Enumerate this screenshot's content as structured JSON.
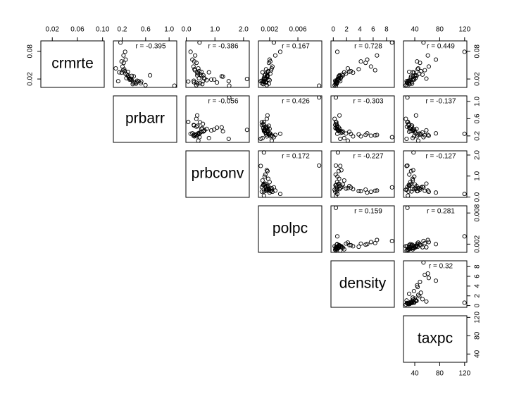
{
  "chart_data": {
    "type": "scatter-matrix",
    "variables": [
      {
        "name": "crmrte",
        "lim": [
          0.0018,
          0.1026
        ],
        "xticks": [
          0.02,
          0.06,
          {
            "value": 0.1,
            "label": "0.10"
          }
        ],
        "yticks": [
          0.02,
          0.08
        ],
        "values": [
          0.0356,
          0.0153,
          0.013,
          0.0268,
          0.0106,
          0.0146,
          0.0098,
          0.0218,
          0.055,
          0.0989,
          0.0338,
          0.0175,
          0.0066,
          0.0279,
          0.0411,
          0.0187,
          0.079,
          0.0124,
          0.0316,
          0.047,
          0.0055,
          0.02,
          0.0258,
          0.015,
          0.039,
          0.062,
          0.0296,
          0.0225,
          0.0345,
          0.0121,
          0.071,
          0.0189,
          0.043,
          0.0163,
          0.028,
          0.009,
          0.0252,
          0.037,
          0.0208,
          0.058
        ]
      },
      {
        "name": "prbarr",
        "lim": [
          0.05,
          1.13
        ],
        "xticks": [
          0.2,
          0.6,
          {
            "value": 1,
            "label": "1.0"
          }
        ],
        "yticks": [
          0.2,
          0.6,
          {
            "value": 1,
            "label": "1.0"
          }
        ],
        "values": [
          0.298,
          0.132,
          0.444,
          0.364,
          0.518,
          0.525,
          0.436,
          0.271,
          0.226,
          0.171,
          0.19,
          0.365,
          0.597,
          0.302,
          0.235,
          0.327,
          0.25,
          0.391,
          0.255,
          0.205,
          1.091,
          0.34,
          0.398,
          0.48,
          0.215,
          0.26,
          0.28,
          0.315,
          0.15,
          0.415,
          0.223,
          0.35,
          0.09,
          0.455,
          0.675,
          0.38,
          0.306,
          0.245,
          0.33,
          0.19
        ]
      },
      {
        "name": "prbconv",
        "lim": [
          -0.014,
          2.2
        ],
        "xticks": [
          {
            "value": 0,
            "label": "0.0"
          },
          {
            "value": 1,
            "label": "1.0"
          },
          {
            "value": 2,
            "label": "2.0"
          }
        ],
        "yticks": [
          {
            "value": 0,
            "label": "0.0"
          },
          {
            "value": 1,
            "label": "1.0"
          },
          {
            "value": 2,
            "label": "2.0"
          }
        ],
        "values": [
          0.527,
          1.481,
          0.267,
          0.525,
          0.476,
          0.068,
          0.394,
          0.443,
          0.355,
          0.462,
          0.378,
          0.714,
          0.35,
          0.597,
          0.286,
          0.872,
          0.15,
          1.071,
          0.404,
          0.25,
          1.5,
          2.121,
          1.236,
          0.58,
          0.3,
          0.213,
          0.492,
          0.612,
          0.79,
          0.355,
          0.31,
          0.975,
          0.42,
          0.26,
          0.38,
          0.56,
          1.28,
          0.452,
          0.64,
          0.28
        ]
      },
      {
        "name": "polpc",
        "lim": [
          0.00042,
          0.00938
        ],
        "xticks": [
          0.002,
          0.006
        ],
        "yticks": [
          0.002,
          0.008
        ],
        "values": [
          0.0018,
          0.00075,
          0.0012,
          0.0016,
          0.0009,
          0.0012,
          0.0019,
          0.0015,
          0.0019,
          0.0026,
          0.0016,
          0.002,
          0.0016,
          0.0013,
          0.0015,
          0.0018,
          0.0035,
          0.0014,
          0.0021,
          0.0024,
          0.009,
          0.0012,
          0.0017,
          0.0011,
          0.0022,
          0.002,
          0.0014,
          0.0012,
          0.001,
          0.0015,
          0.0028,
          0.0013,
          0.0023,
          0.0009,
          0.0017,
          0.0011,
          0.0016,
          0.0018,
          0.0014,
          0.0021
        ]
      },
      {
        "name": "density",
        "lim": [
          -0.35,
          9.18
        ],
        "xticks": [
          0,
          2,
          4,
          6,
          8
        ],
        "yticks": [
          0,
          2,
          4,
          6,
          8
        ],
        "values": [
          2.42,
          1.05,
          0.56,
          0.98,
          0.46,
          0.39,
          0.52,
          1.12,
          4.86,
          8.83,
          2.97,
          0.57,
          0.2,
          1.45,
          3.82,
          0.88,
          0.6,
          0.36,
          1.91,
          5.67,
          0.39,
          0.7,
          0.81,
          0.47,
          6.29,
          5.1,
          1.32,
          0.74,
          1.64,
          0.55,
          6.57,
          0.62,
          2.18,
          0.29,
          0.93,
          0.33,
          1.21,
          2.65,
          0.84,
          4.15
        ]
      },
      {
        "name": "taxpc",
        "lim": [
          21.9,
          123.6
        ],
        "xticks": [
          40,
          80,
          120
        ],
        "yticks": [
          40,
          80,
          120
        ],
        "values": [
          30.99,
          26.9,
          34.8,
          42.9,
          28.1,
          29.0,
          35.7,
          41.2,
          48.4,
          54.0,
          38.7,
          32.9,
          25.7,
          40.3,
          44.6,
          36.5,
          119.8,
          31.2,
          47.3,
          62.5,
          28.2,
          38.0,
          34.1,
          30.5,
          56.1,
          73.9,
          52.4,
          33.6,
          36.8,
          27.4,
          61.0,
          39.2,
          45.5,
          29.9,
          42.0,
          31.7,
          37.4,
          49.8,
          58.6,
          43.7
        ]
      }
    ],
    "correlations": [
      "r = -0.395",
      "r = -0.386",
      "r = 0.167",
      "r = 0.728",
      "r = 0.449",
      "r = -0.056",
      "r = 0.426",
      "r = -0.303",
      "r = -0.137",
      "r = 0.172",
      "r = -0.227",
      "r = -0.127",
      "r = 0.159",
      "r = 0.281",
      "r = 0.32"
    ]
  }
}
